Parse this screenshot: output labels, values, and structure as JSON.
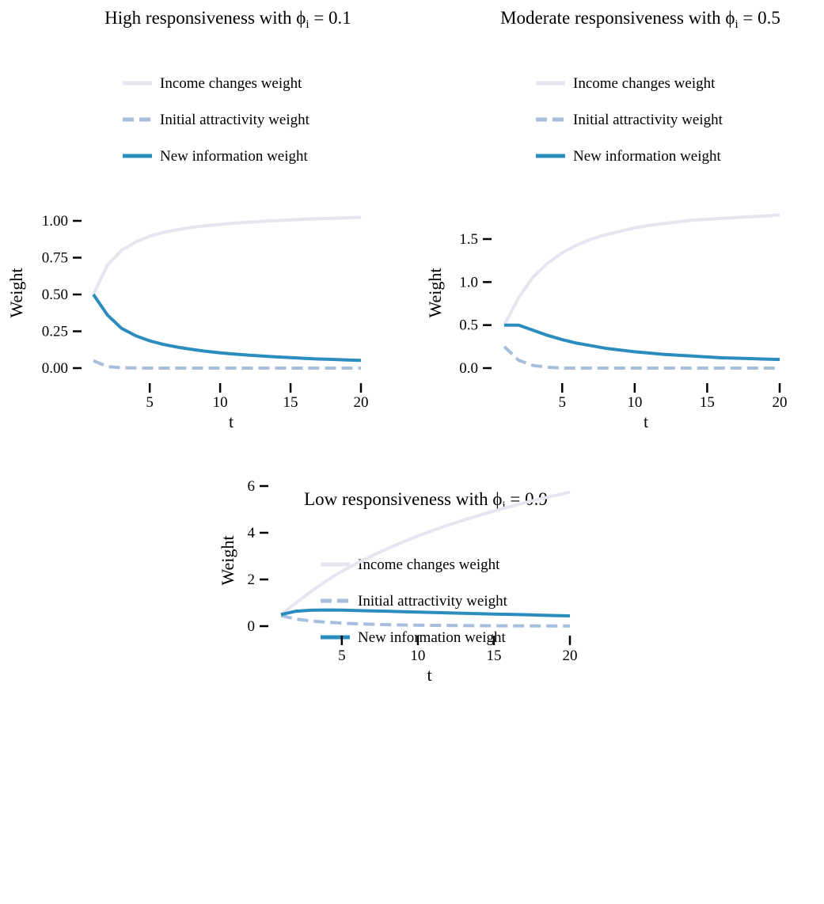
{
  "colors": {
    "income": "#e8e4f0",
    "initial": "#a8bedd",
    "newinfo": "#2b8cbe",
    "tick": "#000000"
  },
  "chart_data": [
    {
      "type": "line",
      "title_text": "High responsiveness with ",
      "title_symbol": "ϕ",
      "title_sub": "i",
      "title_value": " = 0.1",
      "xlabel": "t",
      "ylabel": "Weight",
      "xlim": [
        1,
        20
      ],
      "ylim": [
        0,
        1.05
      ],
      "xticks": [
        5,
        10,
        15,
        20
      ],
      "yticks": [
        0,
        0.25,
        0.5,
        0.75,
        1.0
      ],
      "ytick_labels": [
        "0.00",
        "0.25",
        "0.50",
        "0.75",
        "1.00"
      ],
      "legend_position": "top",
      "x": [
        1,
        2,
        3,
        4,
        5,
        6,
        7,
        8,
        9,
        10,
        11,
        12,
        13,
        14,
        15,
        16,
        17,
        18,
        19,
        20
      ],
      "series": [
        {
          "name": "Income changes weight",
          "style": "solid",
          "color_key": "income",
          "values": [
            0.5,
            0.7,
            0.8,
            0.856,
            0.896,
            0.922,
            0.941,
            0.956,
            0.967,
            0.976,
            0.984,
            0.991,
            0.997,
            1.002,
            1.007,
            1.011,
            1.015,
            1.018,
            1.021,
            1.024
          ]
        },
        {
          "name": "Initial attractivity weight",
          "style": "dashed",
          "color_key": "initial",
          "values": [
            0.05,
            0.01,
            0.002,
            0.0005,
            0,
            0,
            0,
            0,
            0,
            0,
            0,
            0,
            0,
            0,
            0,
            0,
            0,
            0,
            0,
            0
          ]
        },
        {
          "name": "New information weight",
          "style": "solid",
          "color_key": "newinfo",
          "values": [
            0.5,
            0.36,
            0.27,
            0.22,
            0.185,
            0.16,
            0.142,
            0.127,
            0.114,
            0.104,
            0.095,
            0.088,
            0.082,
            0.076,
            0.071,
            0.066,
            0.062,
            0.059,
            0.055,
            0.052
          ]
        }
      ]
    },
    {
      "type": "line",
      "title_text": "Moderate responsiveness with ",
      "title_symbol": "ϕ",
      "title_sub": "i",
      "title_value": " = 0.5",
      "xlabel": "t",
      "ylabel": "Weight",
      "xlim": [
        1,
        20
      ],
      "ylim": [
        0,
        1.8
      ],
      "xticks": [
        5,
        10,
        15,
        20
      ],
      "yticks": [
        0,
        0.5,
        1.0,
        1.5
      ],
      "ytick_labels": [
        "0.0",
        "0.5",
        "1.0",
        "1.5"
      ],
      "legend_position": "top",
      "x": [
        1,
        2,
        3,
        4,
        5,
        6,
        7,
        8,
        9,
        10,
        11,
        12,
        13,
        14,
        15,
        16,
        17,
        18,
        19,
        20
      ],
      "series": [
        {
          "name": "Income changes weight",
          "style": "solid",
          "color_key": "income",
          "values": [
            0.5,
            0.82,
            1.06,
            1.22,
            1.34,
            1.43,
            1.5,
            1.55,
            1.59,
            1.63,
            1.66,
            1.68,
            1.7,
            1.72,
            1.73,
            1.74,
            1.75,
            1.76,
            1.77,
            1.78
          ]
        },
        {
          "name": "Initial attractivity weight",
          "style": "dashed",
          "color_key": "initial",
          "values": [
            0.25,
            0.09,
            0.03,
            0.01,
            0,
            0,
            0,
            0,
            0,
            0,
            0,
            0,
            0,
            0,
            0,
            0,
            0,
            0,
            0,
            0
          ]
        },
        {
          "name": "New information weight",
          "style": "solid",
          "color_key": "newinfo",
          "values": [
            0.5,
            0.5,
            0.44,
            0.38,
            0.33,
            0.29,
            0.26,
            0.23,
            0.21,
            0.19,
            0.175,
            0.16,
            0.15,
            0.14,
            0.13,
            0.12,
            0.115,
            0.11,
            0.105,
            0.1
          ]
        }
      ]
    },
    {
      "type": "line",
      "title_text": "Low responsiveness with ",
      "title_symbol": "ϕ",
      "title_sub": "i",
      "title_value": " = 0.9",
      "xlabel": "t",
      "ylabel": "Weight",
      "xlim": [
        1,
        20
      ],
      "ylim": [
        0,
        6.2
      ],
      "xticks": [
        5,
        10,
        15,
        20
      ],
      "yticks": [
        0,
        2,
        4,
        6
      ],
      "ytick_labels": [
        "0",
        "2",
        "4",
        "6"
      ],
      "legend_position": "top",
      "x": [
        1,
        2,
        3,
        4,
        5,
        6,
        7,
        8,
        9,
        10,
        11,
        12,
        13,
        14,
        15,
        16,
        17,
        18,
        19,
        20
      ],
      "series": [
        {
          "name": "Income changes weight",
          "style": "solid",
          "color_key": "income",
          "values": [
            0.5,
            1.0,
            1.5,
            1.95,
            2.35,
            2.7,
            3.02,
            3.32,
            3.6,
            3.86,
            4.1,
            4.33,
            4.54,
            4.74,
            4.93,
            5.11,
            5.28,
            5.44,
            5.59,
            5.74
          ]
        },
        {
          "name": "Initial attractivity weight",
          "style": "dashed",
          "color_key": "initial",
          "values": [
            0.45,
            0.3,
            0.22,
            0.17,
            0.13,
            0.1,
            0.08,
            0.065,
            0.05,
            0.04,
            0.035,
            0.03,
            0.025,
            0.02,
            0.018,
            0.015,
            0.013,
            0.011,
            0.01,
            0.009
          ]
        },
        {
          "name": "New information weight",
          "style": "solid",
          "color_key": "newinfo",
          "values": [
            0.5,
            0.64,
            0.68,
            0.69,
            0.685,
            0.67,
            0.655,
            0.64,
            0.62,
            0.6,
            0.585,
            0.57,
            0.55,
            0.535,
            0.52,
            0.505,
            0.49,
            0.47,
            0.455,
            0.44
          ]
        }
      ]
    }
  ]
}
